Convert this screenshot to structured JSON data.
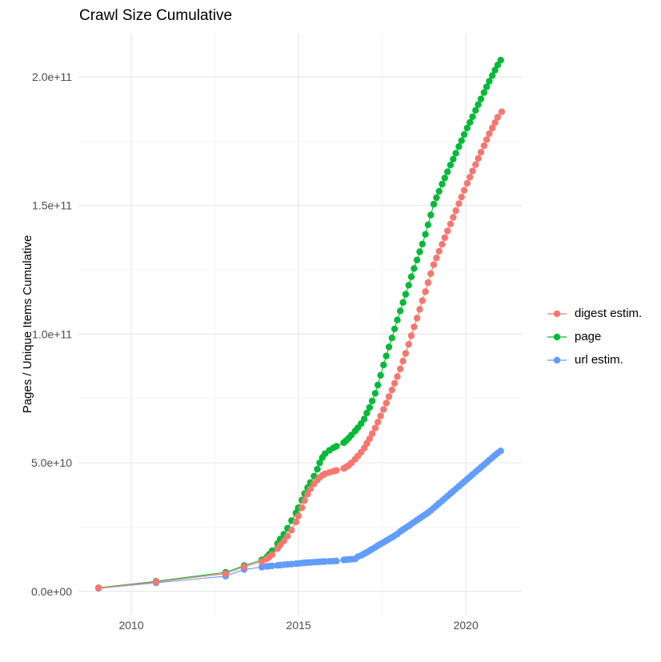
{
  "title": "Crawl Size Cumulative",
  "y_axis": {
    "label": "Pages / Unique Items Cumulative",
    "tick_labels": [
      "0.0e+00",
      "5.0e+10",
      "1.0e+11",
      "1.5e+11",
      "2.0e+11"
    ],
    "tick_values": [
      0,
      50,
      100,
      150,
      200
    ],
    "minor_values": [
      25,
      75,
      125,
      175
    ]
  },
  "x_axis": {
    "tick_labels": [
      "2010",
      "2015",
      "2020"
    ],
    "tick_values": [
      2010,
      2015,
      2020
    ],
    "minor_values": [
      2012.5,
      2017.5
    ]
  },
  "legend": {
    "position": "right",
    "items": [
      {
        "label": "digest estim.",
        "color": "#F8766D"
      },
      {
        "label": "page",
        "color": "#00BA38"
      },
      {
        "label": "url estim.",
        "color": "#619CFF"
      }
    ]
  },
  "style": {
    "background": "#FFFFFF",
    "grid_major_color": "#E8E8E8",
    "grid_minor_color": "#F2F2F2",
    "axis_text_color": "#4D4D4D",
    "title_color": "#000000",
    "point_radius": 4.2,
    "line_width": 1.1
  },
  "chart_data": {
    "type": "line",
    "title": "Crawl Size Cumulative",
    "xlabel": "",
    "ylabel": "Pages / Unique Items Cumulative",
    "x_unit": "decimal year",
    "value_unit": "billions (1e9) of pages / unique items",
    "xlim": [
      2008.42,
      2021.67
    ],
    "ylim_billions": [
      -9.1,
      216.8
    ],
    "grid": true,
    "legend_position": "right",
    "point_style": "line+markers",
    "series": [
      {
        "name": "digest estim.",
        "color": "#F8766D",
        "points": [
          [
            2009.02,
            1.3
          ],
          [
            2010.74,
            3.7
          ],
          [
            2012.82,
            6.9
          ],
          [
            2013.37,
            9.6
          ],
          [
            2013.9,
            11.6
          ],
          [
            2014.04,
            12.6
          ],
          [
            2014.12,
            13.3
          ],
          [
            2014.21,
            14.3
          ],
          [
            2014.37,
            16.6
          ],
          [
            2014.45,
            18.0
          ],
          [
            2014.56,
            19.6
          ],
          [
            2014.67,
            21.5
          ],
          [
            2014.79,
            23.8
          ],
          [
            2014.92,
            27.0
          ],
          [
            2014.99,
            29.3
          ],
          [
            2015.1,
            32.5
          ],
          [
            2015.18,
            35.3
          ],
          [
            2015.27,
            37.8
          ],
          [
            2015.35,
            39.8
          ],
          [
            2015.46,
            41.8
          ],
          [
            2015.56,
            43.3
          ],
          [
            2015.63,
            44.3
          ],
          [
            2015.71,
            45.1
          ],
          [
            2015.79,
            45.7
          ],
          [
            2015.92,
            46.2
          ],
          [
            2016.04,
            46.7
          ],
          [
            2016.13,
            47.0
          ],
          [
            2016.35,
            47.8
          ],
          [
            2016.42,
            48.3
          ],
          [
            2016.5,
            49.0
          ],
          [
            2016.58,
            50.0
          ],
          [
            2016.69,
            51.4
          ],
          [
            2016.77,
            52.6
          ],
          [
            2016.87,
            54.1
          ],
          [
            2016.96,
            55.7
          ],
          [
            2017.04,
            57.5
          ],
          [
            2017.12,
            59.3
          ],
          [
            2017.2,
            61.3
          ],
          [
            2017.29,
            63.5
          ],
          [
            2017.37,
            65.8
          ],
          [
            2017.45,
            68.2
          ],
          [
            2017.54,
            70.7
          ],
          [
            2017.62,
            73.2
          ],
          [
            2017.7,
            75.7
          ],
          [
            2017.79,
            78.3
          ],
          [
            2017.87,
            80.9
          ],
          [
            2017.95,
            83.5
          ],
          [
            2018.04,
            86.5
          ],
          [
            2018.12,
            89.5
          ],
          [
            2018.2,
            92.5
          ],
          [
            2018.29,
            96.0
          ],
          [
            2018.37,
            99.4
          ],
          [
            2018.45,
            102.8
          ],
          [
            2018.54,
            106.2
          ],
          [
            2018.62,
            109.6
          ],
          [
            2018.7,
            113.0
          ],
          [
            2018.79,
            116.5
          ],
          [
            2018.87,
            120.0
          ],
          [
            2018.95,
            123.5
          ],
          [
            2019.04,
            127.0
          ],
          [
            2019.12,
            129.6
          ],
          [
            2019.2,
            132.2
          ],
          [
            2019.29,
            134.9
          ],
          [
            2019.37,
            137.5
          ],
          [
            2019.45,
            140.1
          ],
          [
            2019.54,
            142.8
          ],
          [
            2019.62,
            145.4
          ],
          [
            2019.7,
            148.0
          ],
          [
            2019.79,
            150.7
          ],
          [
            2019.87,
            153.3
          ],
          [
            2019.95,
            155.9
          ],
          [
            2020.04,
            158.6
          ],
          [
            2020.12,
            161.0
          ],
          [
            2020.2,
            163.4
          ],
          [
            2020.29,
            165.9
          ],
          [
            2020.37,
            168.3
          ],
          [
            2020.45,
            170.7
          ],
          [
            2020.54,
            173.2
          ],
          [
            2020.62,
            175.6
          ],
          [
            2020.7,
            177.9
          ],
          [
            2020.79,
            180.1
          ],
          [
            2020.87,
            182.2
          ],
          [
            2020.95,
            184.3
          ],
          [
            2021.07,
            186.4
          ]
        ]
      },
      {
        "name": "page",
        "color": "#00BA38",
        "points": [
          [
            2009.02,
            1.4
          ],
          [
            2010.74,
            3.9
          ],
          [
            2012.82,
            7.4
          ],
          [
            2013.37,
            10.0
          ],
          [
            2013.9,
            12.2
          ],
          [
            2014.04,
            13.2
          ],
          [
            2014.12,
            14.4
          ],
          [
            2014.21,
            15.8
          ],
          [
            2014.37,
            18.6
          ],
          [
            2014.45,
            20.3
          ],
          [
            2014.56,
            22.2
          ],
          [
            2014.67,
            24.5
          ],
          [
            2014.79,
            27.5
          ],
          [
            2014.92,
            30.5
          ],
          [
            2014.99,
            32.5
          ],
          [
            2015.1,
            35.5
          ],
          [
            2015.18,
            38.0
          ],
          [
            2015.27,
            40.3
          ],
          [
            2015.35,
            42.3
          ],
          [
            2015.46,
            44.8
          ],
          [
            2015.56,
            47.5
          ],
          [
            2015.63,
            50.0
          ],
          [
            2015.71,
            52.0
          ],
          [
            2015.79,
            53.5
          ],
          [
            2015.92,
            54.8
          ],
          [
            2016.04,
            55.8
          ],
          [
            2016.13,
            56.4
          ],
          [
            2016.35,
            57.8
          ],
          [
            2016.42,
            58.6
          ],
          [
            2016.5,
            59.6
          ],
          [
            2016.58,
            60.8
          ],
          [
            2016.69,
            62.3
          ],
          [
            2016.77,
            63.6
          ],
          [
            2016.87,
            65.2
          ],
          [
            2016.96,
            67.0
          ],
          [
            2017.04,
            69.3
          ],
          [
            2017.12,
            71.5
          ],
          [
            2017.2,
            74.0
          ],
          [
            2017.29,
            77.0
          ],
          [
            2017.37,
            80.2
          ],
          [
            2017.45,
            84.0
          ],
          [
            2017.54,
            88.0
          ],
          [
            2017.62,
            91.5
          ],
          [
            2017.7,
            95.0
          ],
          [
            2017.79,
            98.5
          ],
          [
            2017.87,
            102.0
          ],
          [
            2017.95,
            105.5
          ],
          [
            2018.04,
            109.0
          ],
          [
            2018.12,
            112.3
          ],
          [
            2018.2,
            115.5
          ],
          [
            2018.29,
            119.0
          ],
          [
            2018.37,
            122.3
          ],
          [
            2018.45,
            125.5
          ],
          [
            2018.54,
            128.8
          ],
          [
            2018.62,
            132.0
          ],
          [
            2018.7,
            135.0
          ],
          [
            2018.79,
            138.8
          ],
          [
            2018.87,
            142.5
          ],
          [
            2018.95,
            146.3
          ],
          [
            2019.04,
            150.5
          ],
          [
            2019.12,
            153.0
          ],
          [
            2019.2,
            155.5
          ],
          [
            2019.29,
            158.3
          ],
          [
            2019.37,
            160.7
          ],
          [
            2019.45,
            163.1
          ],
          [
            2019.54,
            165.7
          ],
          [
            2019.62,
            168.0
          ],
          [
            2019.7,
            170.3
          ],
          [
            2019.79,
            172.9
          ],
          [
            2019.87,
            175.2
          ],
          [
            2019.95,
            177.6
          ],
          [
            2020.04,
            180.1
          ],
          [
            2020.12,
            182.3
          ],
          [
            2020.2,
            184.5
          ],
          [
            2020.29,
            187.0
          ],
          [
            2020.37,
            189.2
          ],
          [
            2020.45,
            191.4
          ],
          [
            2020.54,
            193.9
          ],
          [
            2020.62,
            196.1
          ],
          [
            2020.7,
            198.3
          ],
          [
            2020.79,
            200.5
          ],
          [
            2020.87,
            202.6
          ],
          [
            2020.95,
            204.6
          ],
          [
            2021.04,
            206.5
          ]
        ]
      },
      {
        "name": "url estim.",
        "color": "#619CFF",
        "points": [
          [
            2009.02,
            1.2
          ],
          [
            2010.74,
            3.3
          ],
          [
            2012.82,
            5.9
          ],
          [
            2013.37,
            8.5
          ],
          [
            2013.9,
            9.4
          ],
          [
            2014.04,
            9.7
          ],
          [
            2014.12,
            9.8
          ],
          [
            2014.21,
            9.9
          ],
          [
            2014.37,
            10.1
          ],
          [
            2014.45,
            10.2
          ],
          [
            2014.56,
            10.35
          ],
          [
            2014.67,
            10.5
          ],
          [
            2014.79,
            10.6
          ],
          [
            2014.92,
            10.75
          ],
          [
            2014.99,
            10.85
          ],
          [
            2015.1,
            11.0
          ],
          [
            2015.18,
            11.1
          ],
          [
            2015.27,
            11.2
          ],
          [
            2015.35,
            11.25
          ],
          [
            2015.46,
            11.35
          ],
          [
            2015.56,
            11.45
          ],
          [
            2015.63,
            11.5
          ],
          [
            2015.71,
            11.55
          ],
          [
            2015.79,
            11.6
          ],
          [
            2015.92,
            11.7
          ],
          [
            2016.04,
            11.75
          ],
          [
            2016.13,
            11.8
          ],
          [
            2016.35,
            12.2
          ],
          [
            2016.42,
            12.3
          ],
          [
            2016.5,
            12.4
          ],
          [
            2016.58,
            12.5
          ],
          [
            2016.69,
            12.6
          ],
          [
            2016.77,
            13.5
          ],
          [
            2016.87,
            14.0
          ],
          [
            2016.96,
            14.6
          ],
          [
            2017.04,
            15.2
          ],
          [
            2017.12,
            15.8
          ],
          [
            2017.2,
            16.4
          ],
          [
            2017.29,
            17.1
          ],
          [
            2017.37,
            17.8
          ],
          [
            2017.45,
            18.4
          ],
          [
            2017.54,
            19.1
          ],
          [
            2017.62,
            19.7
          ],
          [
            2017.7,
            20.3
          ],
          [
            2017.79,
            21.0
          ],
          [
            2017.87,
            21.6
          ],
          [
            2017.95,
            22.3
          ],
          [
            2018.04,
            23.3
          ],
          [
            2018.12,
            24.0
          ],
          [
            2018.2,
            24.7
          ],
          [
            2018.29,
            25.4
          ],
          [
            2018.37,
            26.2
          ],
          [
            2018.45,
            26.9
          ],
          [
            2018.54,
            27.7
          ],
          [
            2018.62,
            28.4
          ],
          [
            2018.7,
            29.1
          ],
          [
            2018.79,
            29.9
          ],
          [
            2018.87,
            30.6
          ],
          [
            2018.95,
            31.4
          ],
          [
            2019.04,
            32.4
          ],
          [
            2019.12,
            33.3
          ],
          [
            2019.2,
            34.2
          ],
          [
            2019.29,
            35.2
          ],
          [
            2019.37,
            36.1
          ],
          [
            2019.45,
            37.0
          ],
          [
            2019.54,
            38.0
          ],
          [
            2019.62,
            38.9
          ],
          [
            2019.7,
            39.8
          ],
          [
            2019.79,
            40.8
          ],
          [
            2019.87,
            41.7
          ],
          [
            2019.95,
            42.6
          ],
          [
            2020.04,
            43.6
          ],
          [
            2020.12,
            44.5
          ],
          [
            2020.2,
            45.4
          ],
          [
            2020.29,
            46.4
          ],
          [
            2020.37,
            47.3
          ],
          [
            2020.45,
            48.2
          ],
          [
            2020.54,
            49.2
          ],
          [
            2020.62,
            50.1
          ],
          [
            2020.7,
            51.0
          ],
          [
            2020.79,
            52.0
          ],
          [
            2020.87,
            52.9
          ],
          [
            2020.95,
            53.8
          ],
          [
            2021.04,
            54.6
          ]
        ]
      }
    ]
  }
}
